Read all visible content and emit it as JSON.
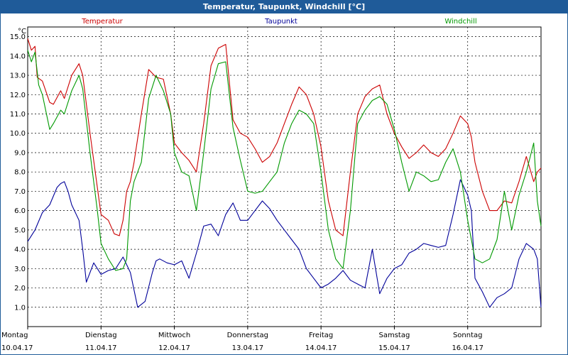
{
  "window": {
    "title": "Temperatur, Taupunkt, Windchill [°C]"
  },
  "chart_data": {
    "type": "line",
    "title": "Temperatur, Taupunkt, Windchill [°C]",
    "ylabel": "°C",
    "ylim": [
      0,
      15.5
    ],
    "xlim": [
      0,
      7
    ],
    "yticks": [
      "1.0",
      "2.0",
      "3.0",
      "4.0",
      "5.0",
      "6.0",
      "7.0",
      "8.0",
      "9.0",
      "10.0",
      "11.0",
      "12.0",
      "13.0",
      "14.0",
      "15.0"
    ],
    "xticks": [
      {
        "day": "Montag",
        "date": "10.04.17"
      },
      {
        "day": "Dienstag",
        "date": "11.04.17"
      },
      {
        "day": "Mittwoch",
        "date": "12.04.17"
      },
      {
        "day": "Donnerstag",
        "date": "13.04.17"
      },
      {
        "day": "Freitag",
        "date": "14.04.17"
      },
      {
        "day": "Samstag",
        "date": "15.04.17"
      },
      {
        "day": "Sonntag",
        "date": "16.04.17"
      }
    ],
    "grid": true,
    "series": [
      {
        "name": "Temperatur",
        "color": "#cc0000",
        "x": [
          0,
          0.05,
          0.1,
          0.13,
          0.2,
          0.3,
          0.35,
          0.45,
          0.5,
          0.6,
          0.7,
          0.75,
          0.85,
          0.95,
          1.0,
          1.1,
          1.18,
          1.25,
          1.3,
          1.35,
          1.4,
          1.45,
          1.55,
          1.65,
          1.75,
          1.85,
          1.95,
          2.0,
          2.1,
          2.2,
          2.3,
          2.4,
          2.5,
          2.6,
          2.7,
          2.8,
          2.9,
          3.0,
          3.1,
          3.2,
          3.3,
          3.4,
          3.5,
          3.6,
          3.7,
          3.8,
          3.9,
          4.0,
          4.1,
          4.2,
          4.3,
          4.4,
          4.5,
          4.6,
          4.7,
          4.8,
          4.9,
          5.0,
          5.1,
          5.2,
          5.3,
          5.4,
          5.5,
          5.6,
          5.7,
          5.8,
          5.9,
          6.0,
          6.05,
          6.1,
          6.2,
          6.3,
          6.4,
          6.5,
          6.6,
          6.7,
          6.8,
          6.9,
          6.95,
          7.0
        ],
        "values": [
          14.9,
          14.3,
          14.5,
          12.9,
          12.7,
          11.6,
          11.5,
          12.2,
          11.8,
          13.0,
          13.6,
          13.0,
          10.0,
          7.2,
          5.8,
          5.5,
          4.8,
          4.7,
          5.5,
          7.0,
          7.5,
          8.5,
          11.0,
          13.3,
          12.9,
          12.8,
          11.0,
          9.5,
          9.0,
          8.6,
          8.0,
          10.5,
          13.5,
          14.4,
          14.6,
          10.7,
          10.0,
          9.8,
          9.2,
          8.5,
          8.8,
          9.5,
          10.5,
          11.5,
          12.4,
          12.0,
          11.0,
          9.3,
          6.5,
          5.0,
          4.7,
          8.0,
          11.0,
          11.9,
          12.3,
          12.5,
          11.0,
          10.0,
          9.3,
          8.7,
          9.0,
          9.4,
          9.0,
          8.8,
          9.2,
          10.0,
          10.9,
          10.5,
          9.8,
          8.5,
          7.0,
          6.0,
          6.0,
          6.5,
          6.4,
          7.5,
          8.8,
          7.5,
          8.0,
          8.2
        ]
      },
      {
        "name": "Taupunkt",
        "color": "#000099",
        "x": [
          0,
          0.1,
          0.2,
          0.3,
          0.4,
          0.45,
          0.5,
          0.55,
          0.6,
          0.7,
          0.75,
          0.8,
          0.9,
          1.0,
          1.1,
          1.2,
          1.3,
          1.4,
          1.5,
          1.6,
          1.7,
          1.75,
          1.8,
          1.9,
          2.0,
          2.1,
          2.2,
          2.3,
          2.4,
          2.5,
          2.6,
          2.7,
          2.8,
          2.9,
          3.0,
          3.1,
          3.2,
          3.3,
          3.4,
          3.5,
          3.6,
          3.7,
          3.8,
          3.9,
          4.0,
          4.1,
          4.2,
          4.3,
          4.4,
          4.5,
          4.6,
          4.7,
          4.8,
          4.9,
          5.0,
          5.1,
          5.2,
          5.3,
          5.4,
          5.5,
          5.6,
          5.7,
          5.8,
          5.9,
          6.0,
          6.05,
          6.1,
          6.2,
          6.3,
          6.4,
          6.5,
          6.6,
          6.7,
          6.8,
          6.9,
          6.95,
          7.0
        ],
        "values": [
          4.4,
          5.0,
          5.9,
          6.3,
          7.2,
          7.4,
          7.5,
          7.0,
          6.3,
          5.5,
          4.0,
          2.3,
          3.3,
          2.7,
          2.9,
          3.0,
          3.6,
          2.8,
          1.0,
          1.3,
          2.8,
          3.4,
          3.5,
          3.3,
          3.2,
          3.4,
          2.5,
          3.8,
          5.2,
          5.3,
          4.7,
          5.8,
          6.4,
          5.5,
          5.5,
          6.0,
          6.5,
          6.1,
          5.5,
          5.0,
          4.5,
          4.0,
          3.0,
          2.5,
          2.0,
          2.2,
          2.5,
          2.9,
          2.4,
          2.2,
          2.0,
          4.0,
          1.7,
          2.5,
          3.0,
          3.2,
          3.8,
          4.0,
          4.3,
          4.2,
          4.1,
          4.2,
          5.8,
          7.6,
          6.8,
          6.0,
          2.5,
          1.8,
          1.0,
          1.5,
          1.7,
          2.0,
          3.5,
          4.3,
          4.0,
          3.5,
          1.0
        ]
      },
      {
        "name": "Windchill",
        "color": "#009900",
        "x": [
          0,
          0.05,
          0.1,
          0.15,
          0.2,
          0.3,
          0.35,
          0.45,
          0.5,
          0.6,
          0.7,
          0.75,
          0.85,
          0.95,
          1.0,
          1.1,
          1.2,
          1.3,
          1.35,
          1.4,
          1.45,
          1.55,
          1.65,
          1.75,
          1.85,
          1.95,
          2.0,
          2.1,
          2.2,
          2.3,
          2.4,
          2.5,
          2.6,
          2.7,
          2.8,
          2.9,
          3.0,
          3.1,
          3.2,
          3.3,
          3.4,
          3.5,
          3.6,
          3.7,
          3.8,
          3.9,
          4.0,
          4.1,
          4.2,
          4.3,
          4.4,
          4.5,
          4.6,
          4.7,
          4.8,
          4.9,
          5.0,
          5.1,
          5.2,
          5.3,
          5.4,
          5.5,
          5.6,
          5.7,
          5.8,
          5.9,
          6.0,
          6.05,
          6.1,
          6.2,
          6.3,
          6.4,
          6.5,
          6.6,
          6.7,
          6.8,
          6.9,
          6.95,
          7.0
        ],
        "values": [
          14.3,
          13.7,
          14.2,
          12.5,
          12.0,
          10.2,
          10.5,
          11.2,
          11.0,
          12.2,
          13.0,
          12.3,
          9.0,
          6.0,
          4.3,
          3.5,
          2.9,
          3.0,
          3.5,
          6.5,
          7.5,
          8.5,
          11.8,
          13.0,
          12.2,
          11.0,
          9.0,
          8.0,
          7.8,
          6.0,
          9.0,
          12.3,
          13.6,
          13.7,
          10.3,
          8.6,
          7.0,
          6.9,
          7.0,
          7.5,
          8.0,
          9.5,
          10.5,
          11.2,
          11.0,
          10.5,
          8.0,
          5.0,
          3.5,
          3.0,
          6.0,
          10.5,
          11.2,
          11.7,
          11.9,
          11.5,
          10.2,
          8.5,
          7.0,
          8.0,
          7.8,
          7.5,
          7.6,
          8.5,
          9.2,
          8.0,
          5.5,
          4.5,
          3.5,
          3.3,
          3.5,
          4.5,
          7.0,
          5.0,
          6.8,
          8.0,
          9.5,
          6.5,
          5.2
        ]
      }
    ]
  }
}
